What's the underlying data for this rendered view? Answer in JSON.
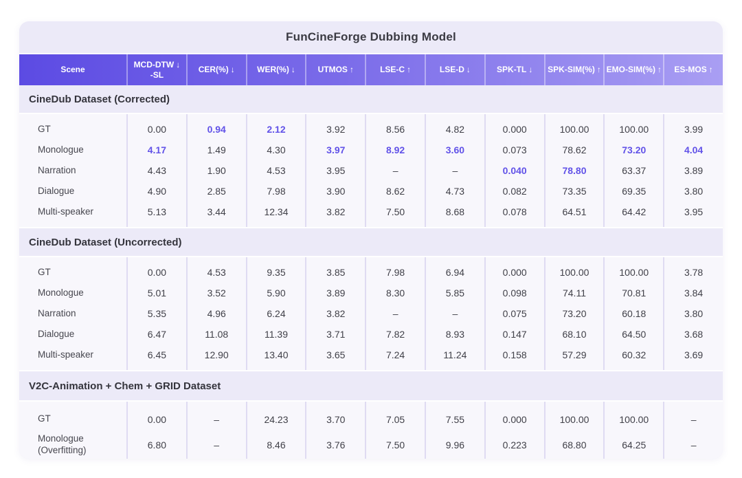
{
  "chart_data": {
    "type": "table",
    "title": "FunCineForge Dubbing Model",
    "columns": [
      {
        "label": "Scene",
        "sub": "",
        "arrow": ""
      },
      {
        "label": "MCD-DTW",
        "sub": "-SL",
        "arrow": "↓"
      },
      {
        "label": "CER(%)",
        "sub": "",
        "arrow": "↓"
      },
      {
        "label": "WER(%)",
        "sub": "",
        "arrow": "↓"
      },
      {
        "label": "UTMOS",
        "sub": "",
        "arrow": "↑"
      },
      {
        "label": "LSE-C",
        "sub": "",
        "arrow": "↑"
      },
      {
        "label": "LSE-D",
        "sub": "",
        "arrow": "↓"
      },
      {
        "label": "SPK-TL",
        "sub": "",
        "arrow": "↓"
      },
      {
        "label": "SPK-SIM(%)",
        "sub": "",
        "arrow": "↑"
      },
      {
        "label": "EMO-SIM(%)",
        "sub": "",
        "arrow": "↑"
      },
      {
        "label": "ES-MOS",
        "sub": "",
        "arrow": "↑"
      }
    ],
    "sections": [
      {
        "heading": "CineDub Dataset (Corrected)",
        "rows": [
          {
            "scene": "GT",
            "values": [
              "0.00",
              "0.94",
              "2.12",
              "3.92",
              "8.56",
              "4.82",
              "0.000",
              "100.00",
              "100.00",
              "3.99"
            ]
          },
          {
            "scene": "Monologue",
            "values": [
              "4.17",
              "1.49",
              "4.30",
              "3.97",
              "8.92",
              "3.60",
              "0.073",
              "78.62",
              "73.20",
              "4.04"
            ]
          },
          {
            "scene": "Narration",
            "values": [
              "4.43",
              "1.90",
              "4.53",
              "3.95",
              "–",
              "–",
              "0.040",
              "78.80",
              "63.37",
              "3.89"
            ]
          },
          {
            "scene": "Dialogue",
            "values": [
              "4.90",
              "2.85",
              "7.98",
              "3.90",
              "8.62",
              "4.73",
              "0.082",
              "73.35",
              "69.35",
              "3.80"
            ]
          },
          {
            "scene": "Multi-speaker",
            "values": [
              "5.13",
              "3.44",
              "12.34",
              "3.82",
              "7.50",
              "8.68",
              "0.078",
              "64.51",
              "64.42",
              "3.95"
            ]
          }
        ],
        "highlights": [
          [
            0,
            1
          ],
          [
            0,
            2
          ],
          [
            1,
            0
          ],
          [
            1,
            3
          ],
          [
            1,
            4
          ],
          [
            1,
            5
          ],
          [
            1,
            8
          ],
          [
            1,
            9
          ],
          [
            2,
            6
          ],
          [
            2,
            7
          ]
        ]
      },
      {
        "heading": "CineDub Dataset (Uncorrected)",
        "rows": [
          {
            "scene": "GT",
            "values": [
              "0.00",
              "4.53",
              "9.35",
              "3.85",
              "7.98",
              "6.94",
              "0.000",
              "100.00",
              "100.00",
              "3.78"
            ]
          },
          {
            "scene": "Monologue",
            "values": [
              "5.01",
              "3.52",
              "5.90",
              "3.89",
              "8.30",
              "5.85",
              "0.098",
              "74.11",
              "70.81",
              "3.84"
            ]
          },
          {
            "scene": "Narration",
            "values": [
              "5.35",
              "4.96",
              "6.24",
              "3.82",
              "–",
              "–",
              "0.075",
              "73.20",
              "60.18",
              "3.80"
            ]
          },
          {
            "scene": "Dialogue",
            "values": [
              "6.47",
              "11.08",
              "11.39",
              "3.71",
              "7.82",
              "8.93",
              "0.147",
              "68.10",
              "64.50",
              "3.68"
            ]
          },
          {
            "scene": "Multi-speaker",
            "values": [
              "6.45",
              "12.90",
              "13.40",
              "3.65",
              "7.24",
              "11.24",
              "0.158",
              "57.29",
              "60.32",
              "3.69"
            ]
          }
        ],
        "highlights": []
      },
      {
        "heading": "V2C-Animation + Chem + GRID Dataset",
        "rows": [
          {
            "scene": "GT",
            "values": [
              "0.00",
              "–",
              "24.23",
              "3.70",
              "7.05",
              "7.55",
              "0.000",
              "100.00",
              "100.00",
              "–"
            ]
          },
          {
            "scene": "Monologue\n(Overfitting)",
            "values": [
              "6.80",
              "–",
              "8.46",
              "3.76",
              "7.50",
              "9.96",
              "0.223",
              "68.80",
              "64.25",
              "–"
            ]
          }
        ],
        "highlights": []
      }
    ],
    "colors": {
      "accent": "#6152E8",
      "header_gradient_start": "#5C4BE3",
      "header_gradient_end": "#A99EF3",
      "card_background": "#ECEAF8",
      "block_background": "#F8F7FC",
      "text": "#3F3F47"
    }
  }
}
